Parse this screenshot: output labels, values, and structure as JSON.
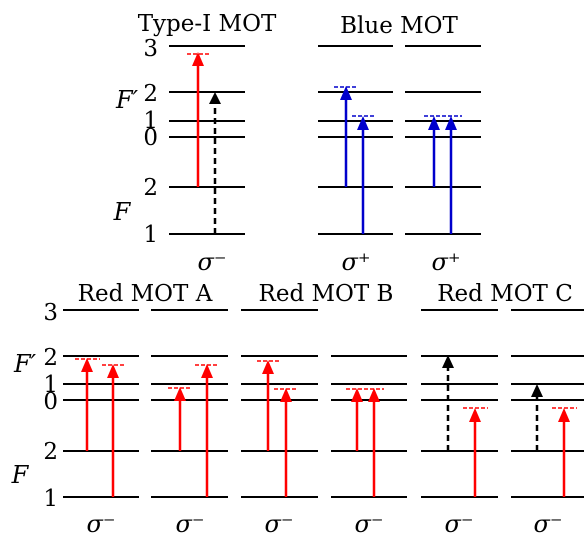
{
  "colors": {
    "red": "#ff0000",
    "blue": "#0000cc",
    "black": "#000000",
    "level": "#000000"
  },
  "top": {
    "excited_symbol": "F′",
    "ground_symbol": "F",
    "level_labels": [
      "3",
      "2",
      "1",
      "0",
      "2",
      "1"
    ],
    "panels": [
      {
        "title": "Type-I MOT",
        "polarization": "σ⁻",
        "arrows": [
          {
            "from": "F=2",
            "to": "F'=3",
            "color": "red",
            "style": "solid",
            "detuning": "above"
          },
          {
            "from": "F=1",
            "to": "F'=2",
            "color": "black",
            "style": "dashed",
            "detuning": "none"
          }
        ]
      },
      {
        "title": "Blue MOT",
        "polarization": "σ⁺",
        "arrows": [
          {
            "from": "F=2",
            "to": "F'=2",
            "color": "blue",
            "style": "solid",
            "detuning": "below"
          },
          {
            "from": "F=1",
            "to": "F'=1",
            "color": "blue",
            "style": "solid",
            "detuning": "below"
          }
        ]
      },
      {
        "title": "",
        "polarization": "σ⁺",
        "arrows": [
          {
            "from": "F=2",
            "to": "F'=1",
            "color": "blue",
            "style": "solid",
            "detuning": "below"
          },
          {
            "from": "F=1",
            "to": "F'=1",
            "color": "blue",
            "style": "solid",
            "detuning": "below"
          }
        ]
      }
    ]
  },
  "bottom": {
    "excited_symbol": "F′",
    "ground_symbol": "F",
    "level_labels": [
      "3",
      "2",
      "1",
      "0",
      "2",
      "1"
    ],
    "panels": [
      {
        "title": "Red MOT A",
        "polarization": "σ⁻",
        "arrows": [
          {
            "from": "F=2",
            "to": "F'=2",
            "color": "red",
            "style": "solid",
            "detuning": "above"
          }
        ]
      },
      {
        "title": "",
        "polarization": "σ⁻",
        "arrows": [
          {
            "from": "F=1",
            "to": "F'=2",
            "color": "red",
            "style": "solid",
            "detuning": "above"
          }
        ]
      },
      {
        "title": "Red MOT B",
        "polarization": "σ⁻",
        "arrows": [
          {
            "from": "F=2",
            "to": "F'=2",
            "color": "red",
            "style": "solid",
            "detuning": "above"
          }
        ]
      },
      {
        "title": "",
        "polarization": "σ⁻",
        "arrows": [
          {
            "from": "F=2",
            "to": "F'=1",
            "color": "red",
            "style": "solid",
            "detuning": "above"
          }
        ]
      },
      {
        "title": "Red MOT C",
        "polarization": "σ⁻",
        "arrows": [
          {
            "from": "F=2",
            "to": "F'=2",
            "color": "black",
            "style": "dashed",
            "detuning": "none"
          }
        ]
      },
      {
        "title": "",
        "polarization": "σ⁻",
        "arrows": [
          {
            "from": "F=2",
            "to": "F'=1",
            "color": "black",
            "style": "dashed",
            "detuning": "none"
          }
        ]
      }
    ]
  }
}
